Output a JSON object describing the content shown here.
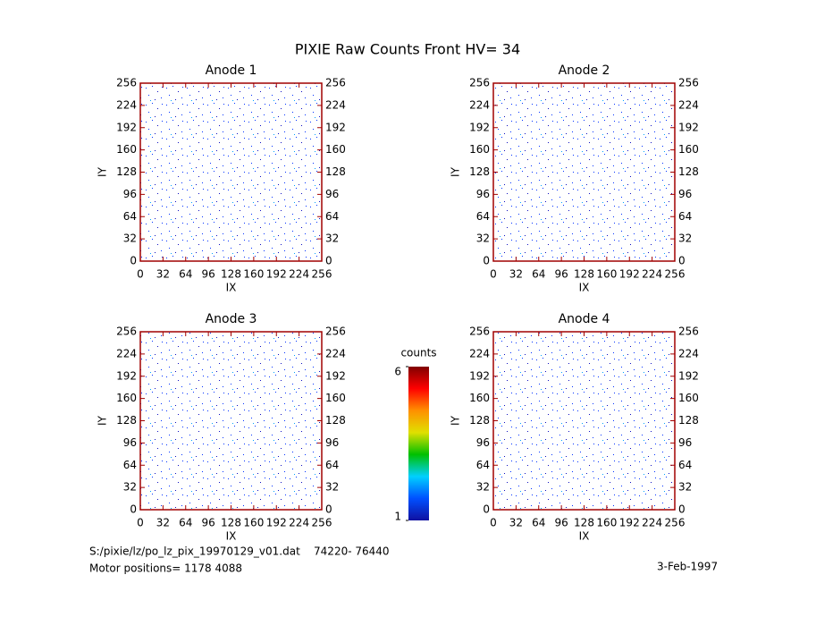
{
  "title": "PIXIE Raw Counts Front HV= 34",
  "chart_data": [
    {
      "type": "heatmap",
      "title": "Anode 1",
      "xlabel": "IX",
      "ylabel": "IY",
      "xlim": [
        0,
        256
      ],
      "ylim": [
        0,
        256
      ],
      "xticks": [
        0,
        32,
        64,
        96,
        128,
        160,
        192,
        224,
        256
      ],
      "yticks": [
        0,
        32,
        64,
        96,
        128,
        160,
        192,
        224,
        256
      ]
    },
    {
      "type": "heatmap",
      "title": "Anode 2",
      "xlabel": "IX",
      "ylabel": "IY",
      "xlim": [
        0,
        256
      ],
      "ylim": [
        0,
        256
      ],
      "xticks": [
        0,
        32,
        64,
        96,
        128,
        160,
        192,
        224,
        256
      ],
      "yticks": [
        0,
        32,
        64,
        96,
        128,
        160,
        192,
        224,
        256
      ]
    },
    {
      "type": "heatmap",
      "title": "Anode 3",
      "xlabel": "IX",
      "ylabel": "IY",
      "xlim": [
        0,
        256
      ],
      "ylim": [
        0,
        256
      ],
      "xticks": [
        0,
        32,
        64,
        96,
        128,
        160,
        192,
        224,
        256
      ],
      "yticks": [
        0,
        32,
        64,
        96,
        128,
        160,
        192,
        224,
        256
      ]
    },
    {
      "type": "heatmap",
      "title": "Anode 4",
      "xlabel": "IX",
      "ylabel": "IY",
      "xlim": [
        0,
        256
      ],
      "ylim": [
        0,
        256
      ],
      "xticks": [
        0,
        32,
        64,
        96,
        128,
        160,
        192,
        224,
        256
      ],
      "yticks": [
        0,
        32,
        64,
        96,
        128,
        160,
        192,
        224,
        256
      ]
    }
  ],
  "colorbar": {
    "label": "counts",
    "lim": [
      1,
      6
    ],
    "ticks": [
      1,
      6
    ],
    "colors": [
      "#1010a0",
      "#0050ff",
      "#00d0ff",
      "#00c000",
      "#e0e000",
      "#ff9000",
      "#ff0000",
      "#800000"
    ]
  },
  "footer": {
    "file": "S:/pixie/lz/po_lz_pix_19970129_v01.dat    74220- 76440",
    "motor": "Motor positions= 1178 4088",
    "date": "3-Feb-1997"
  }
}
